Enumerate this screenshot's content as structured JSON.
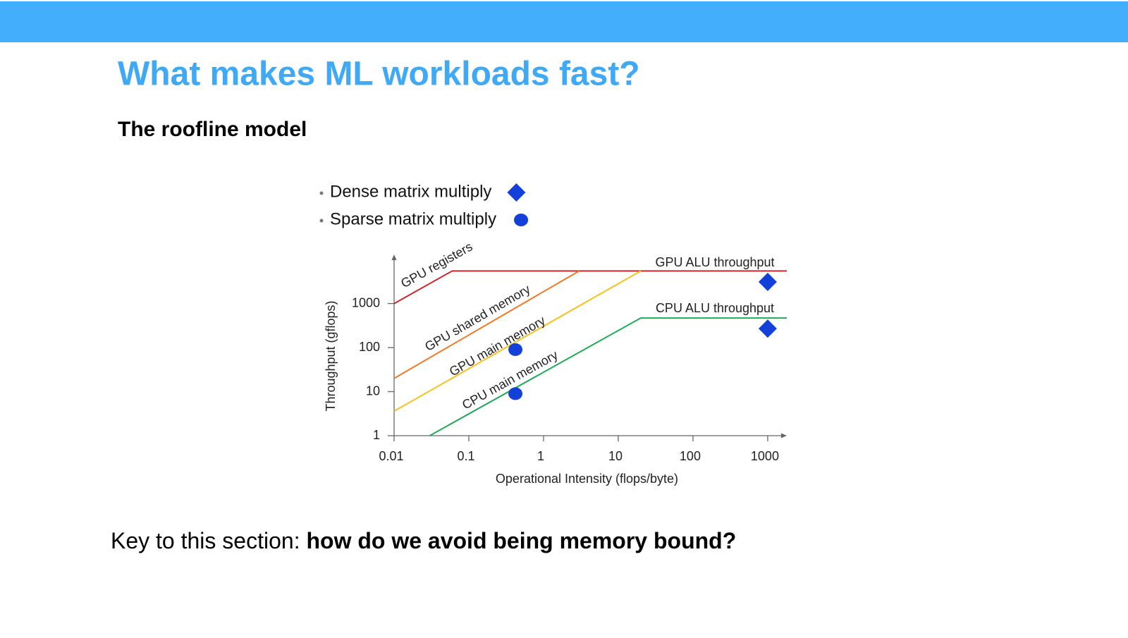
{
  "header": {
    "title": "What makes ML workloads fast?",
    "subtitle": "The roofline model"
  },
  "chart_data": {
    "type": "line",
    "log_x": true,
    "log_y": true,
    "xlabel": "Operational Intensity (flops/byte)",
    "ylabel": "Throughput (gflops)",
    "xlim": [
      0.01,
      1800
    ],
    "ylim": [
      1,
      13000
    ],
    "xticks": [
      0.01,
      0.1,
      1,
      10,
      100,
      1000
    ],
    "yticks": [
      1,
      10,
      100,
      1000
    ],
    "annotations": [
      "GPU ALU throughput",
      "CPU ALU throughput"
    ],
    "series": [
      {
        "name": "GPU registers",
        "mode": "line",
        "color": "#c8282e",
        "x": [
          0.01,
          0.06,
          1800
        ],
        "values": [
          1000,
          5500,
          5500
        ]
      },
      {
        "name": "GPU shared memory",
        "mode": "line",
        "color": "#ee7a2a",
        "x": [
          0.01,
          3
        ],
        "values": [
          20,
          5500
        ]
      },
      {
        "name": "GPU main memory",
        "mode": "line",
        "color": "#f5c21f",
        "x": [
          0.01,
          20
        ],
        "values": [
          3.6,
          5500
        ]
      },
      {
        "name": "CPU main memory",
        "mode": "line",
        "color": "#22a85a",
        "x": [
          0.03,
          20,
          1800
        ],
        "values": [
          1,
          470,
          470
        ]
      },
      {
        "name": "Dense matrix multiply",
        "mode": "markers",
        "marker": "diamond",
        "color": "#1340d8",
        "x": [
          1000,
          1000
        ],
        "values": [
          3100,
          270
        ]
      },
      {
        "name": "Sparse matrix multiply",
        "mode": "markers",
        "marker": "circle",
        "color": "#1340d8",
        "x": [
          0.42,
          0.42
        ],
        "values": [
          90,
          9
        ]
      }
    ]
  },
  "footer": {
    "lead": "Key to this section: ",
    "emphasis": "how do we avoid being memory bound?"
  }
}
